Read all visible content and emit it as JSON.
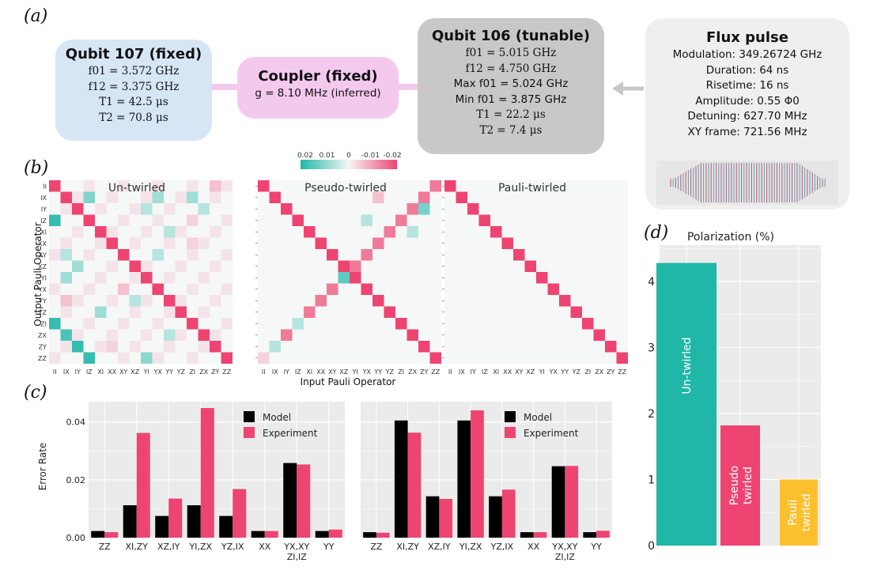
{
  "panels": {
    "a": "(a)",
    "b": "(b)",
    "c": "(c)",
    "d": "(d)"
  },
  "colors": {
    "black": "#000000",
    "pink": "#ee4471",
    "teal": "#20b7a8",
    "gold": "#fbc02d",
    "blue_box": "#d6e6f5",
    "pink_box": "#f4c9ee",
    "gray_box": "#c8c8c8",
    "lightgray_box": "#efefef"
  },
  "qubit107": {
    "title": "Qubit 107 (fixed)",
    "lines": [
      "f01 = 3.572 GHz",
      "f12 = 3.375 GHz",
      "T1 = 42.5  μs",
      "T2 = 70.8  μs"
    ]
  },
  "coupler": {
    "title": "Coupler (fixed)",
    "line": "g = 8.10 MHz (inferred)"
  },
  "qubit106": {
    "title": "Qubit 106 (tunable)",
    "lines": [
      "f01 = 5.015 GHz",
      "f12 = 4.750 GHz",
      "Max f01 = 5.024 GHz",
      "Min f01 = 3.875 GHz",
      "T1 = 22.2  μs",
      "T2 = 7.4  μs"
    ]
  },
  "flux": {
    "title": "Flux pulse",
    "lines": [
      "Modulation: 349.26724 GHz",
      "Duration: 64 ns",
      "Risetime: 16 ns",
      "Amplitude: 0.55 Φ0",
      "Detuning: 627.70 MHz",
      "XY frame: 721.56 MHz"
    ]
  },
  "heatmaps": {
    "paulis": [
      "II",
      "IX",
      "IY",
      "IZ",
      "XI",
      "XX",
      "XY",
      "XZ",
      "YI",
      "YX",
      "YY",
      "YZ",
      "ZI",
      "ZX",
      "ZY",
      "ZZ"
    ],
    "titles": [
      "Un-twirled",
      "Pseudo-twirled",
      "Pauli-twirled"
    ],
    "colorbar_ticks": [
      "0.02",
      "0.01",
      "0",
      "-0.01",
      "-0.02"
    ],
    "ylabel": "Output Pauli Operator",
    "xlabel": "Input Pauli Operator"
  },
  "chart_data": [
    {
      "type": "bar",
      "title": "",
      "ylabel": "Error Rate",
      "categories": [
        "ZZ",
        "XI,ZY",
        "XZ,IY",
        "YI,ZX",
        "YZ,IX",
        "XX",
        "YX,XY ZI,IZ",
        "YY"
      ],
      "ylim": [
        0,
        0.047
      ],
      "yticks": [
        "0.00",
        "0.02",
        "0.04"
      ],
      "series": [
        {
          "name": "Model",
          "values": [
            0.0023,
            0.0112,
            0.0075,
            0.0112,
            0.0075,
            0.0023,
            0.0258,
            0.0023
          ]
        },
        {
          "name": "Experiment",
          "values": [
            0.0019,
            0.0362,
            0.0135,
            0.0448,
            0.0168,
            0.0023,
            0.0253,
            0.0028
          ]
        }
      ]
    },
    {
      "type": "bar",
      "title": "",
      "categories": [
        "ZZ",
        "XI,ZY",
        "XZ,IY",
        "YI,ZX",
        "YZ,IX",
        "XX",
        "YX,XY ZI,IZ",
        "YY"
      ],
      "ylim": [
        0,
        0.047
      ],
      "series": [
        {
          "name": "Model",
          "values": [
            0.0019,
            0.0405,
            0.0143,
            0.0405,
            0.0143,
            0.0019,
            0.0247,
            0.0019
          ]
        },
        {
          "name": "Experiment",
          "values": [
            0.0017,
            0.0363,
            0.0134,
            0.044,
            0.0166,
            0.0019,
            0.0248,
            0.0024
          ]
        }
      ]
    },
    {
      "type": "bar",
      "title": "Polarization (%)",
      "categories": [
        "Un-twirled",
        "Pseudo twirled",
        "Pauli twirled"
      ],
      "values": [
        4.28,
        1.82,
        1.0
      ],
      "colors": [
        "#20b7a8",
        "#ee4471",
        "#fbc02d"
      ],
      "ylim": [
        0,
        4.55
      ],
      "yticks": [
        "0",
        "1",
        "2",
        "3",
        "4"
      ]
    }
  ]
}
